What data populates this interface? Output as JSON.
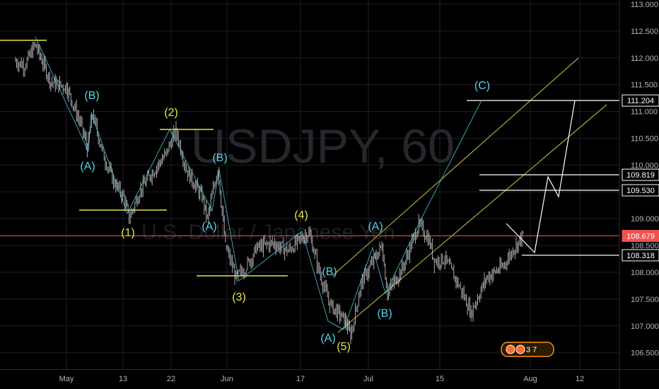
{
  "watermark": {
    "symbol": "USDJPY, 60",
    "description": "U.S. Dollar / Japanese Yen"
  },
  "colors": {
    "background": "#000000",
    "grid": "#1f1f24",
    "candle": "#c8c8c8",
    "yellow": "#e6e63c",
    "cyan": "#4fd6e8",
    "white": "#ffffff",
    "current": "#ef5350",
    "channel": "#a8a83a",
    "axis_text": "#b2b5be"
  },
  "chart_data": {
    "type": "candlestick",
    "symbol": "USDJPY",
    "timeframe": "60",
    "ylim": [
      106.25,
      113.05
    ],
    "yticks": [
      "113.000",
      "112.500",
      "112.000",
      "111.500",
      "111.000",
      "110.500",
      "110.000",
      "109.500",
      "109.000",
      "108.500",
      "108.000",
      "107.500",
      "107.000",
      "106.500"
    ],
    "xticks": [
      "May",
      "13",
      "22",
      "Jun",
      "17",
      "Jul",
      "15",
      "Aug",
      "12"
    ],
    "grid": true,
    "price_path": [
      [
        "Apr 21",
        111.95
      ],
      [
        "Apr 23",
        111.85
      ],
      [
        "Apr 25",
        112.25
      ],
      [
        "Apr 28",
        111.55
      ],
      [
        "May 1",
        111.45
      ],
      [
        "May 4",
        110.7
      ],
      [
        "May 5",
        110.3
      ],
      [
        "May 6",
        110.95
      ],
      [
        "May 8",
        110.2
      ],
      [
        "May 10",
        109.7
      ],
      [
        "May 12",
        109.4
      ],
      [
        "May 13",
        109.0
      ],
      [
        "May 15",
        109.5
      ],
      [
        "May 17",
        109.8
      ],
      [
        "May 20",
        110.2
      ],
      [
        "May 22",
        110.65
      ],
      [
        "May 24",
        109.9
      ],
      [
        "May 27",
        109.4
      ],
      [
        "May 28",
        109.0
      ],
      [
        "May 30",
        109.95
      ],
      [
        "Jun 1",
        108.5
      ],
      [
        "Jun 3",
        107.9
      ],
      [
        "Jun 5",
        108.1
      ],
      [
        "Jun 7",
        108.45
      ],
      [
        "Jun 10",
        108.55
      ],
      [
        "Jun 13",
        108.4
      ],
      [
        "Jun 17",
        108.75
      ],
      [
        "Jun 19",
        108.0
      ],
      [
        "Jun 21",
        107.4
      ],
      [
        "Jun 24",
        107.1
      ],
      [
        "Jun 25",
        106.8
      ],
      [
        "Jun 27",
        107.8
      ],
      [
        "Jul 1",
        108.5
      ],
      [
        "Jul 3",
        107.6
      ],
      [
        "Jul 6",
        108.1
      ],
      [
        "Jul 9",
        108.9
      ],
      [
        "Jul 11",
        108.6
      ],
      [
        "Jul 12",
        108.2
      ],
      [
        "Jul 14",
        108.25
      ],
      [
        "Jul 17",
        107.7
      ],
      [
        "Jul 19",
        107.25
      ],
      [
        "Jul 22",
        107.9
      ],
      [
        "Jul 25",
        108.1
      ],
      [
        "Jul 27",
        108.4
      ],
      [
        "Jul 29",
        108.7
      ]
    ],
    "current_price": "108.679",
    "horizontal_levels": [
      {
        "label": "111.204",
        "price": 111.204
      },
      {
        "label": "109.819",
        "price": 109.819
      },
      {
        "label": "109.530",
        "price": 109.53
      },
      {
        "label": "108.318",
        "price": 108.318
      }
    ],
    "price_axis_labels": [
      "111.204",
      "109.819",
      "109.530",
      "108.679",
      "108.318"
    ],
    "projection_path": [
      [
        "Jul 29",
        108.95
      ],
      [
        "Aug 1",
        108.35
      ],
      [
        "Aug 3",
        109.65
      ],
      [
        "Aug 5",
        109.4
      ],
      [
        "Aug 9",
        111.2
      ]
    ],
    "wave_labels": [
      {
        "text": "(B)",
        "color": "cyan"
      },
      {
        "text": "(A)",
        "color": "cyan"
      },
      {
        "text": "(1)",
        "color": "yellow"
      },
      {
        "text": "(2)",
        "color": "yellow"
      },
      {
        "text": "(B)",
        "color": "cyan"
      },
      {
        "text": "(A)",
        "color": "cyan"
      },
      {
        "text": "(3)",
        "color": "yellow"
      },
      {
        "text": "(4)",
        "color": "yellow"
      },
      {
        "text": "(B)",
        "color": "cyan"
      },
      {
        "text": "(A)",
        "color": "cyan"
      },
      {
        "text": "(5)",
        "color": "yellow"
      },
      {
        "text": "(A)",
        "color": "cyan"
      },
      {
        "text": "(B)",
        "color": "cyan"
      },
      {
        "text": "(C)",
        "color": "cyan"
      }
    ],
    "badge": "3  7"
  }
}
